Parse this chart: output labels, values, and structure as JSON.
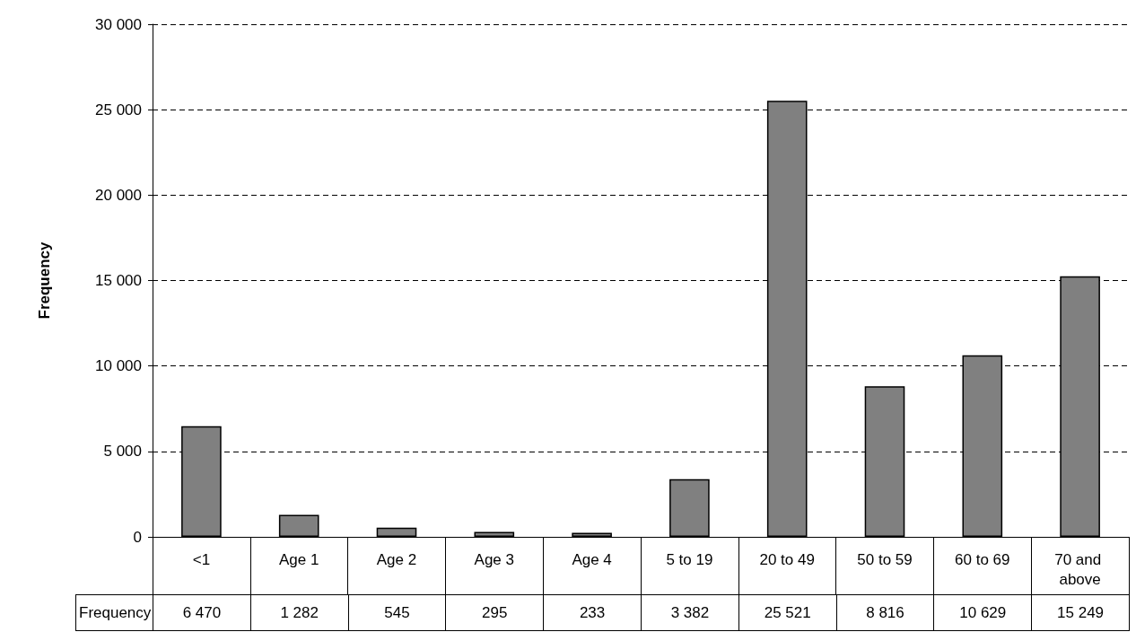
{
  "chart_data": {
    "type": "bar",
    "ylabel": "Frequency",
    "categories": [
      "<1",
      "Age 1",
      "Age 2",
      "Age 3",
      "Age 4",
      "5 to 19",
      "20 to 49",
      "50 to 59",
      "60 to 69",
      "70 and above"
    ],
    "series": [
      {
        "name": "Frequency",
        "color": "#808080",
        "values": [
          6470,
          1282,
          545,
          295,
          233,
          3382,
          25521,
          8816,
          10629,
          15249
        ]
      }
    ],
    "value_labels": [
      "6 470",
      "1 282",
      "545",
      "295",
      "233",
      "3 382",
      "25 521",
      "8 816",
      "10 629",
      "15 249"
    ],
    "ylim": [
      0,
      30000
    ],
    "yticks": [
      {
        "value": 0,
        "label": "0"
      },
      {
        "value": 5000,
        "label": "5 000"
      },
      {
        "value": 10000,
        "label": "10 000"
      },
      {
        "value": 15000,
        "label": "15 000"
      },
      {
        "value": 20000,
        "label": "20 000"
      },
      {
        "value": 25000,
        "label": "25 000"
      },
      {
        "value": 30000,
        "label": "30 000"
      }
    ],
    "grid": "y",
    "legend": false
  }
}
